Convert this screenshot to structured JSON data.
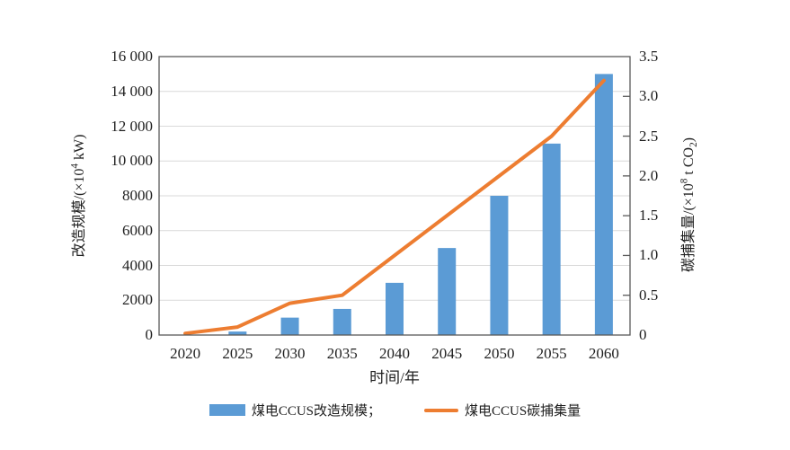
{
  "chart_data": {
    "type": "bar+line",
    "categories": [
      "2020",
      "2025",
      "2030",
      "2035",
      "2040",
      "2045",
      "2050",
      "2055",
      "2060"
    ],
    "series": [
      {
        "name": "煤电CCUS改造规模",
        "type": "bar",
        "axis": "left",
        "color": "#5B9BD5",
        "values": [
          0,
          200,
          1000,
          1500,
          3000,
          5000,
          8000,
          11000,
          15000
        ]
      },
      {
        "name": "煤电CCUS碳捕集量",
        "type": "line",
        "axis": "right",
        "color": "#ED7D31",
        "values": [
          0.02,
          0.1,
          0.4,
          0.5,
          1.0,
          1.5,
          2.0,
          2.5,
          3.2
        ]
      }
    ],
    "xlabel": "时间/年",
    "ylabel_left": "改造规模/(×10⁴ kW)",
    "ylabel_right": "碳捕集量/(×10⁸ t CO₂)",
    "ylim_left": [
      0,
      16000
    ],
    "ytick_step_left": 2000,
    "ylim_right": [
      0,
      3.5
    ],
    "ytick_step_right": 0.5,
    "grid": "horizontal, light gray, every 2000 on left axis",
    "legend_position": "bottom center",
    "frame_color": "#595959",
    "gridline_color": "#d9d9d9"
  },
  "axes": {
    "left": {
      "title": [
        "改造规模/(×10",
        "4",
        " kW)"
      ],
      "ticks": [
        {
          "label": "0",
          "v": 0
        },
        {
          "label": "2000",
          "v": 2000
        },
        {
          "label": "4000",
          "v": 4000
        },
        {
          "label": "6000",
          "v": 6000
        },
        {
          "label": "8000",
          "v": 8000
        },
        {
          "label": "10 000",
          "v": 10000
        },
        {
          "label": "12 000",
          "v": 12000
        },
        {
          "label": "14 000",
          "v": 14000
        },
        {
          "label": "16 000",
          "v": 16000
        }
      ]
    },
    "right": {
      "title": [
        "碳捕集量/(×10",
        "8",
        " t CO",
        "2",
        ")"
      ],
      "ticks": [
        {
          "label": "0",
          "v": 0
        },
        {
          "label": "0.5",
          "v": 0.5
        },
        {
          "label": "1.0",
          "v": 1.0
        },
        {
          "label": "1.5",
          "v": 1.5
        },
        {
          "label": "2.0",
          "v": 2.0
        },
        {
          "label": "2.5",
          "v": 2.5
        },
        {
          "label": "3.0",
          "v": 3.0
        },
        {
          "label": "3.5",
          "v": 3.5
        }
      ]
    },
    "x": {
      "title": "时间/年"
    }
  },
  "legend": {
    "items": [
      {
        "label": "煤电CCUS改造规模；",
        "color": "#5B9BD5",
        "shape": "bar"
      },
      {
        "label": "煤电CCUS碳捕集量",
        "color": "#ED7D31",
        "shape": "line"
      }
    ]
  }
}
